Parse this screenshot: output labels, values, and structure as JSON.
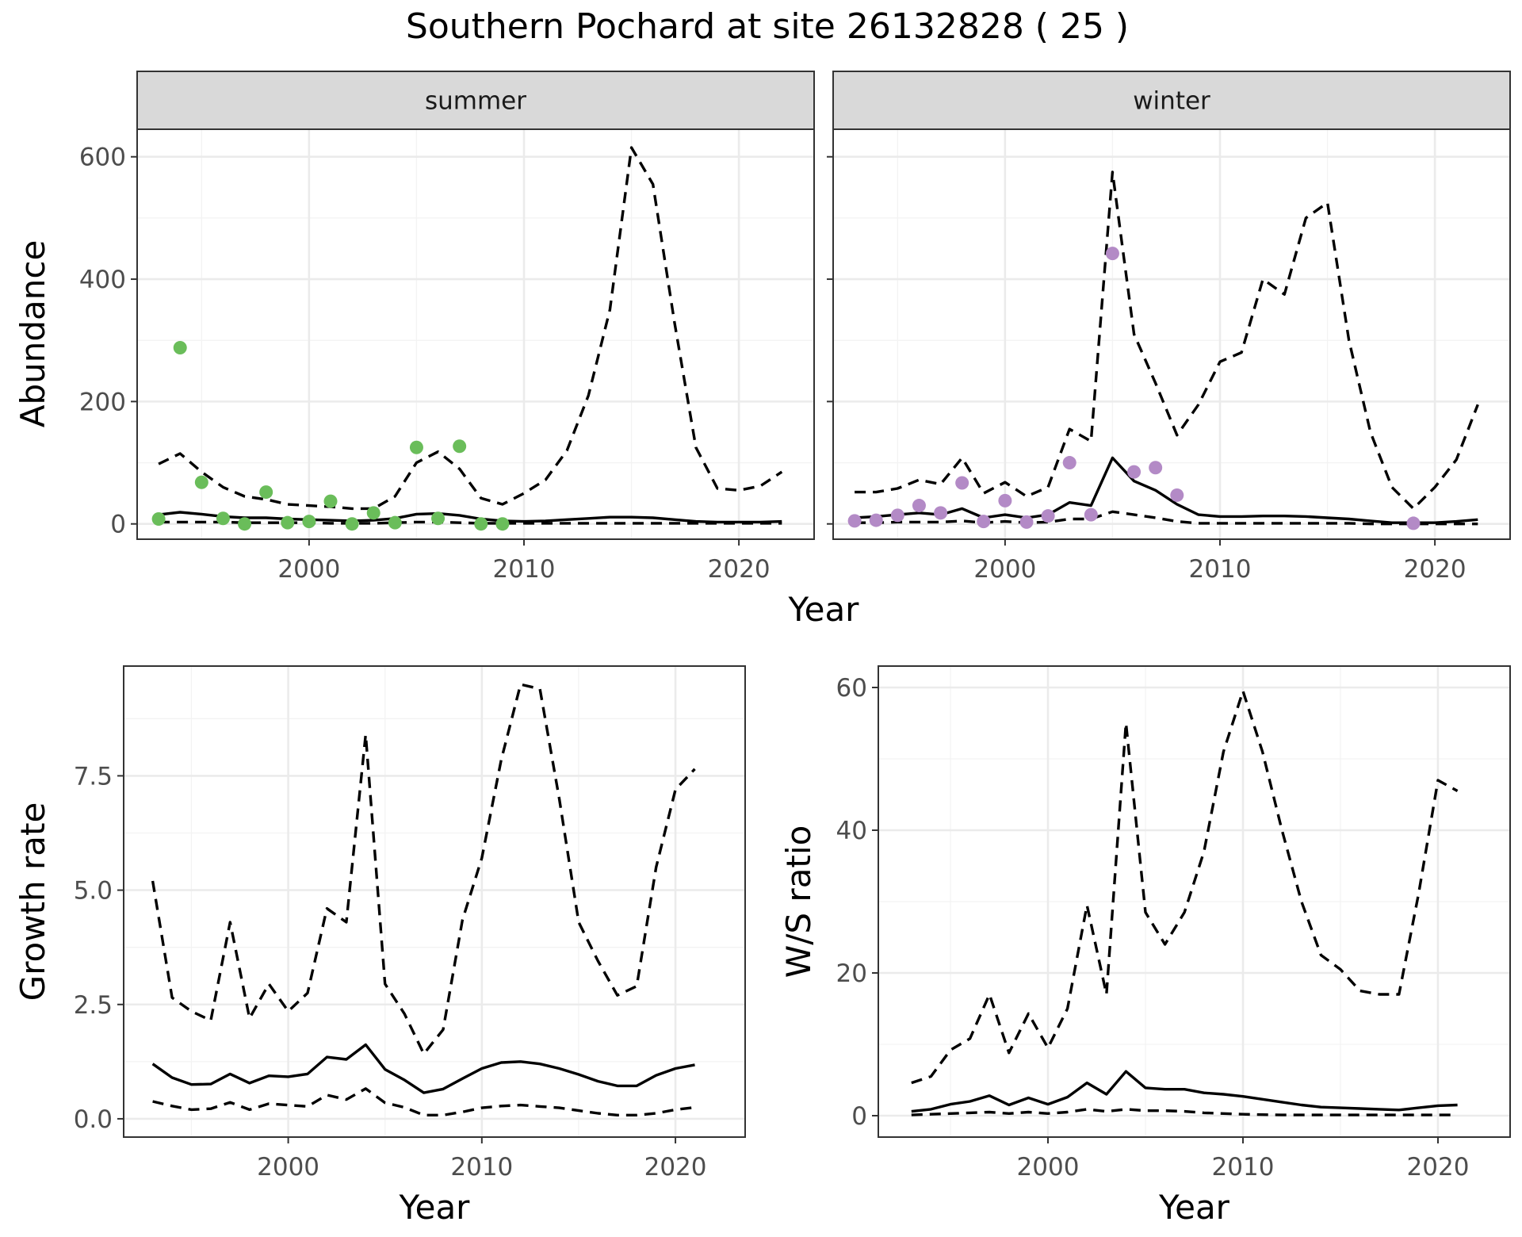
{
  "title": "Southern Pochard at site 26132828 ( 25 )",
  "chart_data": [
    {
      "type": "line",
      "panel": "summer",
      "strip_label": "summer",
      "ylabel": "Abundance",
      "xlabel": "Year",
      "xlim": [
        1992,
        2023.5
      ],
      "ylim": [
        -25,
        645
      ],
      "x_ticks": [
        2000,
        2010,
        2020
      ],
      "x_tick_labels": [
        "2000",
        "2010",
        "2020"
      ],
      "y_ticks": [
        0,
        200,
        400,
        600
      ],
      "y_tick_labels": [
        "0",
        "200",
        "400",
        "600"
      ],
      "point_color": "#6abd5a",
      "x": [
        1993,
        1994,
        1995,
        1996,
        1997,
        1998,
        1999,
        2000,
        2001,
        2002,
        2003,
        2004,
        2005,
        2006,
        2007,
        2008,
        2009,
        2010,
        2011,
        2012,
        2013,
        2014,
        2015,
        2016,
        2017,
        2018,
        2019,
        2020,
        2021,
        2022
      ],
      "series": [
        {
          "style": "solid",
          "values": [
            15,
            19,
            16,
            12,
            10,
            10,
            8,
            7,
            6,
            5,
            6,
            9,
            16,
            17,
            14,
            8,
            5,
            4,
            5,
            7,
            9,
            11,
            11,
            10,
            7,
            4,
            3,
            3,
            3,
            4
          ]
        },
        {
          "style": "dashed",
          "values": [
            3,
            3,
            3,
            3,
            2,
            2,
            2,
            2,
            1,
            1,
            1,
            2,
            3,
            3,
            2,
            1,
            1,
            1,
            1,
            1,
            1,
            1,
            1,
            1,
            1,
            1,
            1,
            1,
            1,
            1
          ]
        },
        {
          "style": "dashed",
          "values": [
            98,
            115,
            85,
            60,
            45,
            40,
            32,
            30,
            28,
            25,
            25,
            45,
            100,
            118,
            90,
            42,
            32,
            50,
            72,
            120,
            210,
            350,
            615,
            555,
            330,
            125,
            58,
            55,
            62,
            85
          ]
        }
      ],
      "points": {
        "x": [
          1993,
          1994,
          1995,
          1996,
          1997,
          1998,
          1999,
          2000,
          2001,
          2002,
          2003,
          2004,
          2005,
          2006,
          2007,
          2008,
          2009
        ],
        "y": [
          8,
          288,
          68,
          9,
          0,
          52,
          2,
          4,
          37,
          0,
          18,
          2,
          125,
          9,
          127,
          0,
          0
        ]
      }
    },
    {
      "type": "line",
      "panel": "winter",
      "strip_label": "winter",
      "ylabel": "",
      "xlabel": "Year",
      "xlim": [
        1992,
        2023.5
      ],
      "ylim": [
        -25,
        645
      ],
      "x_ticks": [
        2000,
        2010,
        2020
      ],
      "x_tick_labels": [
        "2000",
        "2010",
        "2020"
      ],
      "y_ticks": [
        0,
        200,
        400,
        600
      ],
      "y_tick_labels": [],
      "point_color": "#b38ac6",
      "x": [
        1993,
        1994,
        1995,
        1996,
        1997,
        1998,
        1999,
        2000,
        2001,
        2002,
        2003,
        2004,
        2005,
        2006,
        2007,
        2008,
        2009,
        2010,
        2011,
        2012,
        2013,
        2014,
        2015,
        2016,
        2017,
        2018,
        2019,
        2020,
        2021,
        2022
      ],
      "series": [
        {
          "style": "solid",
          "values": [
            10,
            12,
            15,
            18,
            15,
            25,
            10,
            15,
            10,
            15,
            35,
            30,
            108,
            70,
            55,
            32,
            15,
            12,
            12,
            13,
            13,
            12,
            10,
            8,
            5,
            2,
            2,
            2,
            4,
            7
          ]
        },
        {
          "style": "dashed",
          "values": [
            2,
            2,
            3,
            3,
            3,
            5,
            2,
            4,
            2,
            3,
            8,
            8,
            20,
            15,
            10,
            4,
            1,
            1,
            1,
            1,
            1,
            1,
            1,
            1,
            0,
            0,
            0,
            0,
            0,
            0
          ]
        },
        {
          "style": "dashed",
          "values": [
            52,
            52,
            58,
            72,
            65,
            108,
            50,
            68,
            45,
            60,
            155,
            135,
            575,
            310,
            230,
            145,
            195,
            265,
            280,
            400,
            375,
            500,
            525,
            300,
            150,
            60,
            25,
            60,
            105,
            195
          ]
        }
      ],
      "points": {
        "x": [
          1993,
          1994,
          1995,
          1996,
          1997,
          1998,
          1999,
          2000,
          2001,
          2002,
          2003,
          2004,
          2005,
          2006,
          2007,
          2008,
          2019
        ],
        "y": [
          5,
          6,
          14,
          30,
          18,
          67,
          4,
          38,
          3,
          13,
          100,
          15,
          442,
          85,
          92,
          47,
          1
        ]
      }
    },
    {
      "type": "line",
      "panel": "growth",
      "ylabel": "Growth rate",
      "xlabel": "Year",
      "xlim": [
        1991.5,
        2023.6
      ],
      "ylim": [
        -0.4,
        9.9
      ],
      "x_ticks": [
        2000,
        2010,
        2020
      ],
      "x_tick_labels": [
        "2000",
        "2010",
        "2020"
      ],
      "y_ticks": [
        0,
        2.5,
        5.0,
        7.5
      ],
      "y_tick_labels": [
        "0.0",
        "2.5",
        "5.0",
        "7.5"
      ],
      "x": [
        1993,
        1994,
        1995,
        1996,
        1997,
        1998,
        1999,
        2000,
        2001,
        2002,
        2003,
        2004,
        2005,
        2006,
        2007,
        2008,
        2009,
        2010,
        2011,
        2012,
        2013,
        2014,
        2015,
        2016,
        2017,
        2018,
        2019,
        2020,
        2021
      ],
      "series": [
        {
          "style": "solid",
          "values": [
            1.2,
            0.9,
            0.75,
            0.76,
            0.98,
            0.78,
            0.94,
            0.92,
            0.98,
            1.35,
            1.3,
            1.62,
            1.08,
            0.85,
            0.57,
            0.65,
            0.88,
            1.1,
            1.23,
            1.25,
            1.2,
            1.1,
            0.97,
            0.82,
            0.72,
            0.72,
            0.95,
            1.1,
            1.18
          ]
        },
        {
          "style": "dashed",
          "values": [
            0.38,
            0.28,
            0.2,
            0.22,
            0.36,
            0.2,
            0.33,
            0.3,
            0.27,
            0.52,
            0.42,
            0.66,
            0.35,
            0.25,
            0.08,
            0.08,
            0.15,
            0.24,
            0.28,
            0.3,
            0.27,
            0.24,
            0.18,
            0.12,
            0.08,
            0.08,
            0.12,
            0.2,
            0.25
          ]
        },
        {
          "style": "dashed",
          "values": [
            5.2,
            2.65,
            2.35,
            2.15,
            4.3,
            2.2,
            2.95,
            2.35,
            2.75,
            4.6,
            4.3,
            8.4,
            2.95,
            2.3,
            1.42,
            1.95,
            4.35,
            5.7,
            7.85,
            9.5,
            9.4,
            7.0,
            4.3,
            3.45,
            2.7,
            2.9,
            5.5,
            7.2,
            7.65
          ]
        }
      ]
    },
    {
      "type": "line",
      "panel": "ws_ratio",
      "ylabel": "W/S ratio",
      "xlabel": "Year",
      "xlim": [
        1991.3,
        2023.7
      ],
      "ylim": [
        -3,
        63
      ],
      "x_ticks": [
        2000,
        2010,
        2020
      ],
      "x_tick_labels": [
        "2000",
        "2010",
        "2020"
      ],
      "y_ticks": [
        0,
        20,
        40,
        60
      ],
      "y_tick_labels": [
        "0",
        "20",
        "40",
        "60"
      ],
      "x": [
        1993,
        1994,
        1995,
        1996,
        1997,
        1998,
        1999,
        2000,
        2001,
        2002,
        2003,
        2004,
        2005,
        2006,
        2007,
        2008,
        2009,
        2010,
        2011,
        2012,
        2013,
        2014,
        2015,
        2016,
        2017,
        2018,
        2019,
        2020,
        2021
      ],
      "series": [
        {
          "style": "solid",
          "values": [
            0.6,
            0.9,
            1.6,
            2.0,
            2.8,
            1.5,
            2.5,
            1.6,
            2.6,
            4.6,
            3.0,
            6.2,
            3.9,
            3.7,
            3.7,
            3.2,
            3.0,
            2.7,
            2.3,
            1.9,
            1.5,
            1.2,
            1.1,
            1.0,
            0.9,
            0.8,
            1.1,
            1.4,
            1.5
          ]
        },
        {
          "style": "dashed",
          "values": [
            0.1,
            0.2,
            0.3,
            0.4,
            0.5,
            0.3,
            0.5,
            0.3,
            0.5,
            0.9,
            0.6,
            0.9,
            0.7,
            0.7,
            0.6,
            0.4,
            0.3,
            0.2,
            0.15,
            0.1,
            0.1,
            0.1,
            0.1,
            0.1,
            0.1,
            0.1,
            0.1,
            0.1,
            0.1
          ]
        },
        {
          "style": "dashed",
          "values": [
            4.6,
            5.5,
            9.2,
            10.8,
            17.0,
            8.8,
            14.3,
            9.5,
            15.0,
            29.5,
            17.0,
            55.0,
            28.5,
            24.0,
            28.5,
            37.0,
            51.0,
            59.5,
            51.0,
            40.0,
            30.0,
            22.5,
            20.5,
            17.5,
            17.0,
            17.0,
            31.0,
            47.0,
            45.5
          ]
        }
      ]
    }
  ]
}
